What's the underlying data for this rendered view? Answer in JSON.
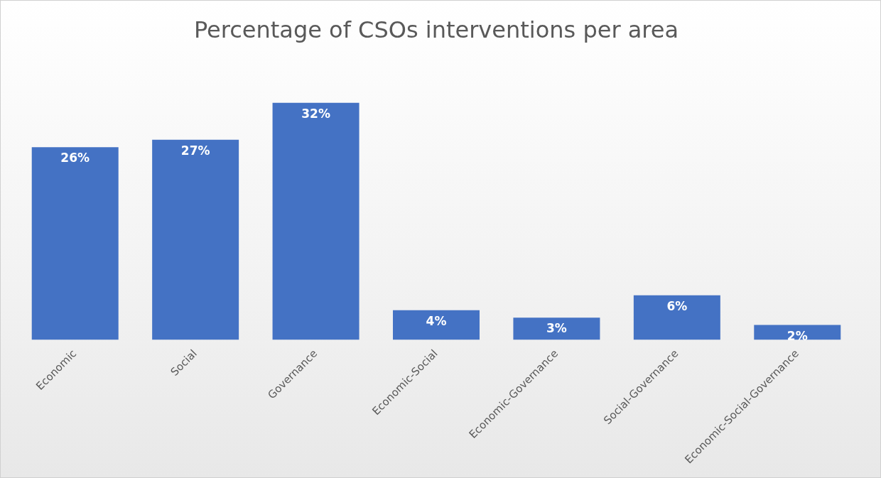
{
  "chart_data": {
    "type": "bar",
    "title": "Percentage of CSOs interventions per area",
    "categories": [
      "Economic",
      "Social",
      "Governance",
      "Economic-Social",
      "Economic-Governance",
      "Social-Governance",
      "Economic-Social-Governance"
    ],
    "values": [
      26,
      27,
      32,
      4,
      3,
      6,
      2
    ],
    "value_labels": [
      "26%",
      "27%",
      "32%",
      "4%",
      "3%",
      "6%",
      "2%"
    ],
    "color": "#4472c4",
    "grid": false,
    "legend": false
  }
}
